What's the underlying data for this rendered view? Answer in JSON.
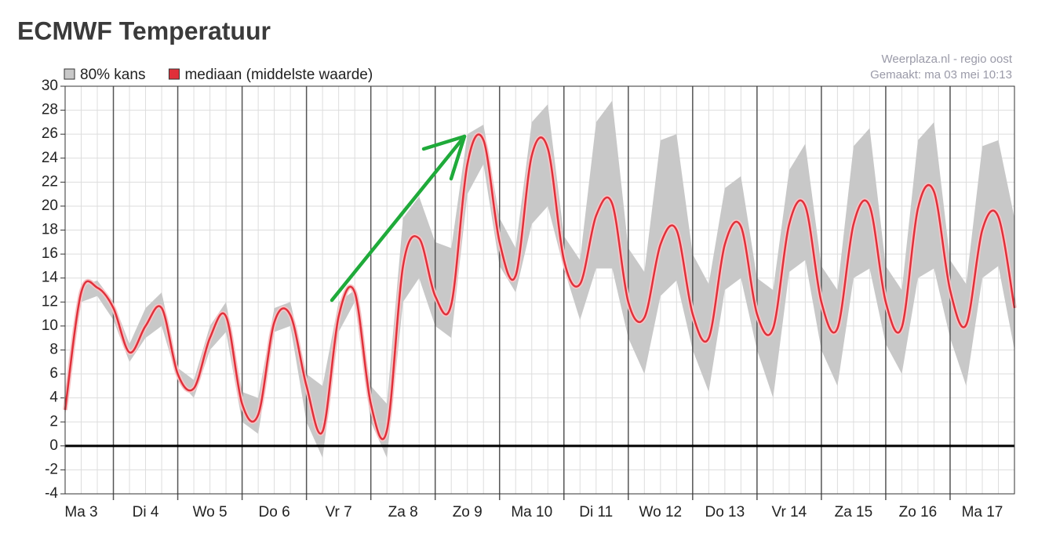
{
  "chart_data": {
    "type": "band-line",
    "title": "ECMWF Temperatuur",
    "source": "Weerplaza.nl - regio oost",
    "created": "Gemaakt: ma 03 mei 10:13",
    "x": [
      0.25,
      0.5,
      0.75,
      1,
      1.25,
      1.5,
      1.75,
      2,
      2.25,
      2.5,
      2.75,
      3,
      3.25,
      3.5,
      3.75,
      4,
      4.25,
      4.5,
      4.75,
      5,
      5.25,
      5.5,
      5.75,
      6,
      6.25,
      6.5,
      6.75,
      7,
      7.25,
      7.5,
      7.75,
      8,
      8.25,
      8.5,
      8.75,
      9,
      9.25,
      9.5,
      9.75,
      10,
      10.25,
      10.5,
      10.75,
      11,
      11.25,
      11.5,
      11.75,
      12,
      12.25,
      12.5,
      12.75,
      13,
      13.25,
      13.5,
      13.75,
      14,
      14.25,
      14.5,
      14.75,
      15
    ],
    "series": [
      {
        "name": "80% kans",
        "color": "#c8c8c8",
        "high": [
          3.5,
          13.3,
          13.8,
          12,
          8.5,
          11.5,
          12.8,
          6.5,
          5.5,
          10,
          12,
          4.5,
          4,
          11.5,
          12,
          6,
          5,
          12,
          13,
          5,
          3.5,
          19,
          20.8,
          17,
          16.5,
          26,
          26.8,
          19,
          16.5,
          27,
          28.5,
          17.5,
          15.5,
          27,
          28.8,
          16.5,
          14.5,
          25.5,
          26,
          16,
          13.5,
          21.5,
          22.5,
          14,
          13,
          23,
          25.2,
          15,
          13,
          25,
          26.5,
          15,
          13,
          25.5,
          27,
          15.5,
          13.5,
          25,
          25.5,
          19
        ],
        "low": [
          2.5,
          12,
          12.5,
          10.5,
          7,
          9,
          10,
          5.5,
          4,
          8,
          9.5,
          2,
          1,
          9.5,
          10,
          2,
          -1,
          9.5,
          12,
          2,
          -1,
          12,
          14,
          10,
          9,
          21,
          23.5,
          15,
          12.8,
          18.5,
          20,
          14.8,
          10.5,
          14.8,
          14.8,
          9,
          6,
          12.5,
          13.8,
          8,
          4.5,
          13,
          14,
          8,
          4,
          14.5,
          15.5,
          8,
          5,
          14,
          14.8,
          8.5,
          6,
          14,
          14.8,
          9,
          5,
          14,
          15,
          8
        ]
      },
      {
        "name": "mediaan (middelste waarde)",
        "color": "#e0303a",
        "values": [
          3,
          12.8,
          13.2,
          11.5,
          7.8,
          10,
          11.5,
          6,
          4.8,
          9,
          10.8,
          3.5,
          2.6,
          10.3,
          10.9,
          5,
          1.2,
          10.8,
          12.8,
          3.5,
          1.3,
          15,
          17.3,
          12.5,
          11.8,
          23.5,
          25.5,
          17,
          14.2,
          24.2,
          24.8,
          15.5,
          13.5,
          19.2,
          20.2,
          12,
          10.7,
          16.8,
          18,
          11,
          9,
          16.8,
          18.3,
          11,
          9.8,
          18.5,
          20,
          12,
          9.8,
          18.5,
          20,
          12,
          9.9,
          19.8,
          21.2,
          13,
          10.1,
          18,
          19.1,
          11.5
        ]
      }
    ],
    "xlim": [
      0.25,
      15
    ],
    "xticks": [
      {
        "value": 0.5,
        "label": "Ma 3"
      },
      {
        "value": 1.5,
        "label": "Di 4"
      },
      {
        "value": 2.5,
        "label": "Wo 5"
      },
      {
        "value": 3.5,
        "label": "Do 6"
      },
      {
        "value": 4.5,
        "label": "Vr 7"
      },
      {
        "value": 5.5,
        "label": "Za 8"
      },
      {
        "value": 6.5,
        "label": "Zo 9"
      },
      {
        "value": 7.5,
        "label": "Ma 10"
      },
      {
        "value": 8.5,
        "label": "Di 11"
      },
      {
        "value": 9.5,
        "label": "Wo 12"
      },
      {
        "value": 10.5,
        "label": "Do 13"
      },
      {
        "value": 11.5,
        "label": "Vr 14"
      },
      {
        "value": 12.5,
        "label": "Za 15"
      },
      {
        "value": 13.5,
        "label": "Zo 16"
      },
      {
        "value": 14.5,
        "label": "Ma 17"
      }
    ],
    "ylim": [
      -4,
      30
    ],
    "yticks": [
      -4,
      -2,
      0,
      2,
      4,
      6,
      8,
      10,
      12,
      14,
      16,
      18,
      20,
      22,
      24,
      26,
      28,
      30
    ],
    "grid": true
  }
}
